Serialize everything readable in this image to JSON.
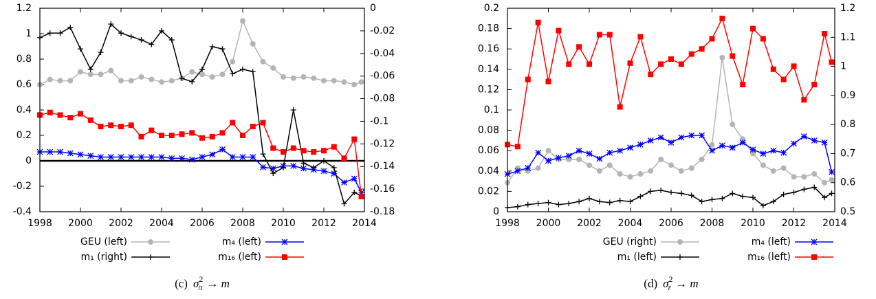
{
  "chart_data": [
    {
      "type": "line",
      "caption": {
        "prefix": "(c)",
        "symbol": "σ",
        "sup": "2",
        "sub": "π",
        "rest": "→ m"
      },
      "x": [
        1998,
        1998.5,
        1999,
        1999.5,
        2000,
        2000.5,
        2001,
        2001.5,
        2002,
        2002.5,
        2003,
        2003.5,
        2004,
        2004.5,
        2005,
        2005.5,
        2006,
        2006.5,
        2007,
        2007.5,
        2008,
        2008.5,
        2009,
        2009.5,
        2010,
        2010.5,
        2011,
        2011.5,
        2012,
        2012.5,
        2013,
        2013.5,
        2013.85
      ],
      "xlim": [
        1998,
        2014
      ],
      "xticks": [
        1998,
        2000,
        2002,
        2004,
        2006,
        2008,
        2010,
        2012,
        2014
      ],
      "ylim": [
        -0.4,
        1.2
      ],
      "yticks": [
        -0.4,
        -0.2,
        0,
        0.2,
        0.4,
        0.6,
        0.8,
        1,
        1.2
      ],
      "y2lim": [
        -0.18,
        0
      ],
      "y2ticks": [
        -0.18,
        -0.16,
        -0.14,
        -0.12,
        -0.1,
        -0.08,
        -0.06,
        -0.04,
        -0.02,
        0
      ],
      "zero_line": true,
      "series": [
        {
          "name": "GEU (left)",
          "color": "#b4b4b4",
          "marker": "circle",
          "axis": "y",
          "values": [
            0.6,
            0.64,
            0.63,
            0.63,
            0.7,
            0.68,
            0.68,
            0.71,
            0.63,
            0.63,
            0.66,
            0.64,
            0.62,
            0.63,
            0.65,
            0.7,
            0.68,
            0.66,
            0.68,
            0.78,
            1.1,
            0.92,
            0.78,
            0.73,
            0.66,
            0.65,
            0.66,
            0.65,
            0.63,
            0.63,
            0.62,
            0.6,
            0.62
          ]
        },
        {
          "name": "m₄ (left)",
          "color": "#0000ff",
          "marker": "x",
          "axis": "y",
          "values": [
            0.07,
            0.07,
            0.07,
            0.06,
            0.05,
            0.04,
            0.03,
            0.03,
            0.03,
            0.03,
            0.03,
            0.03,
            0.03,
            0.02,
            0.02,
            0.01,
            0.03,
            0.05,
            0.09,
            0.03,
            0.03,
            0.03,
            -0.05,
            -0.06,
            -0.04,
            -0.04,
            -0.06,
            -0.07,
            -0.08,
            -0.1,
            -0.17,
            -0.14,
            -0.25
          ]
        },
        {
          "name": "m₁ (right)",
          "color": "#000000",
          "marker": "plus",
          "axis": "y2",
          "values": [
            -0.026,
            -0.022,
            -0.022,
            -0.017,
            -0.036,
            -0.054,
            -0.039,
            -0.014,
            -0.022,
            -0.025,
            -0.028,
            -0.032,
            -0.02,
            -0.028,
            -0.062,
            -0.065,
            -0.054,
            -0.034,
            -0.036,
            -0.058,
            -0.054,
            -0.056,
            -0.129,
            -0.146,
            -0.141,
            -0.09,
            -0.137,
            -0.141,
            -0.135,
            -0.141,
            -0.173,
            -0.163,
            -0.166
          ]
        },
        {
          "name": "m₁₆ (left)",
          "color": "#ff0000",
          "marker": "square",
          "axis": "y",
          "values": [
            0.36,
            0.38,
            0.36,
            0.34,
            0.37,
            0.32,
            0.27,
            0.28,
            0.27,
            0.28,
            0.19,
            0.24,
            0.2,
            0.2,
            0.21,
            0.22,
            0.18,
            0.19,
            0.22,
            0.3,
            0.2,
            0.27,
            0.3,
            0.1,
            0.07,
            0.1,
            0.08,
            0.07,
            0.08,
            0.11,
            0.02,
            0.17,
            -0.28
          ]
        }
      ]
    },
    {
      "type": "line",
      "caption": {
        "prefix": "(d)",
        "symbol": "σ",
        "sup": "2",
        "sub": "r",
        "rest": "→ m"
      },
      "x": [
        1998,
        1998.5,
        1999,
        1999.5,
        2000,
        2000.5,
        2001,
        2001.5,
        2002,
        2002.5,
        2003,
        2003.5,
        2004,
        2004.5,
        2005,
        2005.5,
        2006,
        2006.5,
        2007,
        2007.5,
        2008,
        2008.5,
        2009,
        2009.5,
        2010,
        2010.5,
        2011,
        2011.5,
        2012,
        2012.5,
        2013,
        2013.5,
        2013.85
      ],
      "xlim": [
        1998,
        2014
      ],
      "xticks": [
        1998,
        2000,
        2002,
        2004,
        2006,
        2008,
        2010,
        2012,
        2014
      ],
      "ylim": [
        0,
        0.2
      ],
      "yticks": [
        0,
        0.02,
        0.04,
        0.06,
        0.08,
        0.1,
        0.12,
        0.14,
        0.16,
        0.18,
        0.2
      ],
      "y2lim": [
        0.5,
        1.2
      ],
      "y2ticks": [
        0.5,
        0.6,
        0.7,
        0.8,
        0.9,
        1,
        1.1,
        1.2
      ],
      "zero_line": false,
      "series": [
        {
          "name": "GEU (right)",
          "color": "#b4b4b4",
          "marker": "circle",
          "axis": "y2",
          "values": [
            0.6,
            0.65,
            0.64,
            0.65,
            0.71,
            0.68,
            0.68,
            0.68,
            0.66,
            0.64,
            0.66,
            0.63,
            0.62,
            0.63,
            0.64,
            0.68,
            0.66,
            0.64,
            0.65,
            0.68,
            0.73,
            1.03,
            0.8,
            0.75,
            0.7,
            0.66,
            0.64,
            0.65,
            0.62,
            0.62,
            0.63,
            0.6,
            0.61
          ]
        },
        {
          "name": "m₄ (left)",
          "color": "#0000ff",
          "marker": "x",
          "axis": "y",
          "values": [
            0.037,
            0.04,
            0.043,
            0.058,
            0.05,
            0.053,
            0.055,
            0.06,
            0.057,
            0.052,
            0.058,
            0.06,
            0.063,
            0.066,
            0.07,
            0.073,
            0.068,
            0.073,
            0.075,
            0.075,
            0.06,
            0.065,
            0.063,
            0.068,
            0.061,
            0.057,
            0.06,
            0.058,
            0.067,
            0.074,
            0.07,
            0.068,
            0.039
          ]
        },
        {
          "name": "m₁ (left)",
          "color": "#000000",
          "marker": "plus",
          "axis": "y",
          "values": [
            0.004,
            0.005,
            0.007,
            0.008,
            0.009,
            0.007,
            0.008,
            0.01,
            0.013,
            0.01,
            0.009,
            0.011,
            0.01,
            0.015,
            0.02,
            0.021,
            0.019,
            0.018,
            0.016,
            0.01,
            0.012,
            0.013,
            0.018,
            0.015,
            0.014,
            0.006,
            0.01,
            0.017,
            0.019,
            0.022,
            0.024,
            0.014,
            0.018
          ]
        },
        {
          "name": "m₁₆ (left)",
          "color": "#ff0000",
          "marker": "square",
          "axis": "y",
          "values": [
            0.066,
            0.064,
            0.13,
            0.186,
            0.128,
            0.178,
            0.145,
            0.162,
            0.145,
            0.174,
            0.174,
            0.103,
            0.146,
            0.172,
            0.135,
            0.145,
            0.15,
            0.145,
            0.155,
            0.16,
            0.17,
            0.19,
            0.153,
            0.125,
            0.18,
            0.17,
            0.14,
            0.13,
            0.143,
            0.11,
            0.125,
            0.175,
            0.147
          ]
        }
      ]
    }
  ]
}
